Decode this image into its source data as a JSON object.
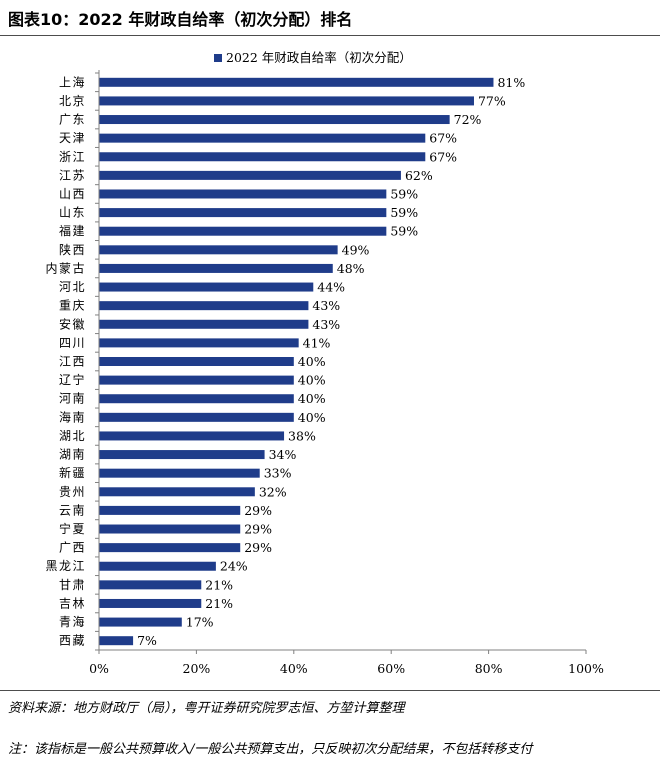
{
  "title": "图表10：2022 年财政自给率（初次分配）排名",
  "source": "资料来源：地方财政厅（局），粤开证券研究院罗志恒、方堃计算整理",
  "note": "注：该指标是一般公共预算收入/一般公共预算支出，只反映初次分配结果，不包括转移支付",
  "chart_data": {
    "type": "bar",
    "orientation": "horizontal",
    "series": [
      {
        "name": "2022 年财政自给率（初次分配）",
        "color": "#1f3c8a",
        "values": [
          81,
          77,
          72,
          67,
          67,
          62,
          59,
          59,
          59,
          49,
          48,
          44,
          43,
          43,
          41,
          40,
          40,
          40,
          40,
          38,
          34,
          33,
          32,
          29,
          29,
          29,
          24,
          21,
          21,
          17,
          7
        ]
      }
    ],
    "categories": [
      "上海",
      "北京",
      "广东",
      "天津",
      "浙江",
      "江苏",
      "山西",
      "山东",
      "福建",
      "陕西",
      "内蒙古",
      "河北",
      "重庆",
      "安徽",
      "四川",
      "江西",
      "辽宁",
      "河南",
      "海南",
      "湖北",
      "湖南",
      "新疆",
      "贵州",
      "云南",
      "宁夏",
      "广西",
      "黑龙江",
      "甘肃",
      "吉林",
      "青海",
      "西藏"
    ],
    "data_labels": [
      "81%",
      "77%",
      "72%",
      "67%",
      "67%",
      "62%",
      "59%",
      "59%",
      "59%",
      "49%",
      "48%",
      "44%",
      "43%",
      "43%",
      "41%",
      "40%",
      "40%",
      "40%",
      "40%",
      "38%",
      "34%",
      "33%",
      "32%",
      "29%",
      "29%",
      "29%",
      "24%",
      "21%",
      "21%",
      "17%",
      "7%"
    ],
    "x_ticks": [
      "0%",
      "20%",
      "40%",
      "60%",
      "80%",
      "100%"
    ],
    "xlim": [
      0,
      100
    ],
    "legend_position": "top",
    "grid": false
  }
}
